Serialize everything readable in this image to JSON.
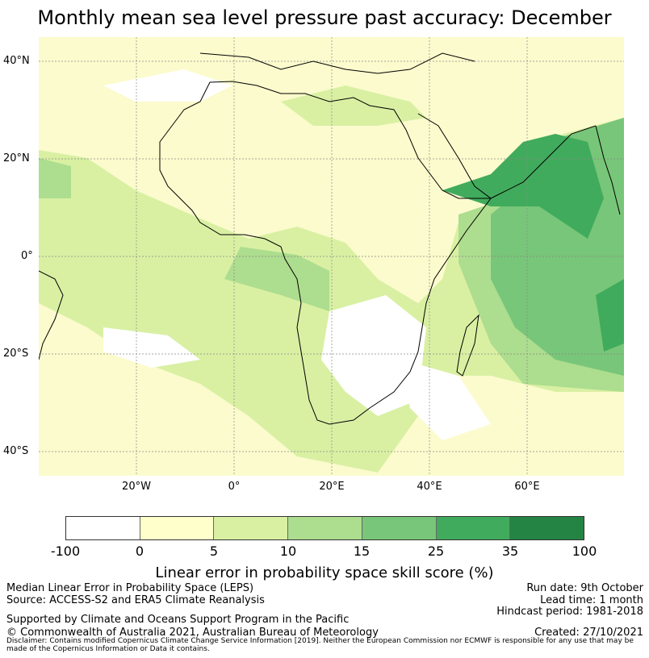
{
  "title": "Monthly mean sea level pressure past accuracy: December",
  "map": {
    "lat_labels": [
      "40°N",
      "20°N",
      "0°",
      "20°S",
      "40°S"
    ],
    "lon_labels": [
      "20°W",
      "0°",
      "20°E",
      "40°E",
      "60°E"
    ]
  },
  "colorbar": {
    "ticks": [
      "-100",
      "0",
      "5",
      "10",
      "15",
      "25",
      "35",
      "100"
    ],
    "colors": [
      "#ffffff",
      "#ffffcc",
      "#d9f0a3",
      "#addd8e",
      "#78c679",
      "#41ab5d",
      "#238443"
    ],
    "label": "Linear error in probability space skill score (%)"
  },
  "footer": {
    "left1": "Median Linear Error in Probability Space (LEPS)",
    "left2": "Source: ACCESS-S2 and ERA5 Climate Reanalysis",
    "left3": "Supported by Climate and Oceans Support Program in the Pacific",
    "left4": "© Commonwealth of Australia 2021, Australian Bureau of Meteorology",
    "right1": "Run date: 9th October",
    "right2": "Lead time: 1 month",
    "right3": "Hindcast period: 1981-2018",
    "right4": "Created: 27/10/2021",
    "disclaimer": "Disclaimer: Contains modified Copernicus Climate Change Service Information [2019]. Neither the European Commission nor ECMWF is responsible for any use that may be made of the Copernicus Information or Data it contains."
  }
}
